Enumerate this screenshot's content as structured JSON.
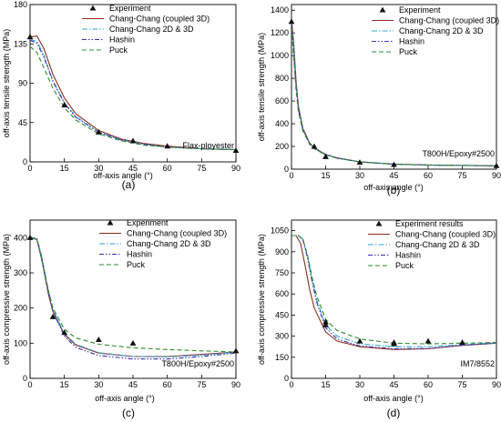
{
  "figure": {
    "series_styles": {
      "Chang-Chang (coupled 3D)": {
        "color": "#8b2c1e",
        "dash": ""
      },
      "Chang-Chang 2D & 3D": {
        "color": "#33a6cc",
        "dash": "6 2 1.5 2"
      },
      "Hashin": {
        "color": "#3b2fb3",
        "dash": "5 2 1.5 2 1.5 2"
      },
      "Puck": {
        "color": "#2e8b2e",
        "dash": "5 3"
      }
    },
    "marker_color": "#111111"
  },
  "chart_data": [
    {
      "type": "line",
      "panel_label": "(a)",
      "ylabel": "off-axis tensile strength (MPa)",
      "xlabel": "off-axis angle (°)",
      "annotation": "Flax-ployester",
      "xlim": [
        0,
        90
      ],
      "ylim": [
        0,
        180
      ],
      "xticks": [
        0,
        15,
        30,
        45,
        60,
        75,
        90
      ],
      "yticks": [
        0,
        45,
        90,
        135,
        180
      ],
      "legend": [
        "Experiment",
        "Chang-Chang (coupled 3D)",
        "Chang-Chang 2D & 3D",
        "Hashin",
        "Puck"
      ],
      "experiment": {
        "name": "Experiment",
        "x": [
          0,
          15,
          30,
          45,
          60,
          90
        ],
        "y": [
          143,
          65,
          34,
          24,
          18,
          13
        ]
      },
      "series": [
        {
          "name": "Chang-Chang (coupled 3D)",
          "x": [
            0,
            3,
            6,
            10,
            15,
            20,
            30,
            40,
            50,
            60,
            75,
            90
          ],
          "y": [
            143,
            144,
            130,
            100,
            73,
            55,
            36,
            26,
            21,
            18,
            15,
            14
          ]
        },
        {
          "name": "Chang-Chang 2D & 3D",
          "x": [
            0,
            3,
            6,
            10,
            15,
            20,
            30,
            40,
            50,
            60,
            75,
            90
          ],
          "y": [
            140,
            138,
            122,
            93,
            68,
            52,
            34,
            25,
            20,
            17,
            15,
            14
          ]
        },
        {
          "name": "Hashin",
          "x": [
            0,
            3,
            6,
            10,
            15,
            20,
            30,
            40,
            50,
            60,
            75,
            90
          ],
          "y": [
            139,
            136,
            120,
            92,
            67,
            51,
            34,
            25,
            20,
            17,
            15,
            14
          ]
        },
        {
          "name": "Puck",
          "x": [
            0,
            3,
            6,
            10,
            15,
            20,
            30,
            40,
            50,
            60,
            75,
            90
          ],
          "y": [
            132,
            125,
            108,
            84,
            62,
            48,
            32,
            24,
            19,
            17,
            15,
            14
          ]
        }
      ]
    },
    {
      "type": "line",
      "panel_label": "(b)",
      "ylabel": "off-axis tensile strength (MPa)",
      "xlabel": "off-axis angle (°)",
      "annotation": "T800H/Epoxy#2500",
      "xlim": [
        0,
        90
      ],
      "ylim": [
        0,
        1450
      ],
      "xticks": [
        0,
        15,
        30,
        45,
        60,
        75,
        90
      ],
      "yticks": [
        0,
        200,
        400,
        600,
        800,
        1000,
        1200,
        1400
      ],
      "legend": [
        "Experiment",
        "Chang-Chang (coupled 3D)",
        "Chang-Chang 2D & 3D",
        "Hashin",
        "Puck"
      ],
      "experiment": {
        "name": "Experiment",
        "x": [
          0,
          10,
          15,
          30,
          45,
          90
        ],
        "y": [
          1300,
          200,
          110,
          60,
          40,
          30
        ]
      },
      "series": [
        {
          "name": "Chang-Chang (coupled 3D)",
          "x": [
            0,
            1,
            2,
            3,
            5,
            8,
            10,
            15,
            20,
            30,
            45,
            60,
            90
          ],
          "y": [
            1330,
            1100,
            780,
            560,
            360,
            230,
            190,
            130,
            100,
            65,
            45,
            37,
            30
          ]
        },
        {
          "name": "Chang-Chang 2D & 3D",
          "x": [
            0,
            1,
            2,
            3,
            5,
            8,
            10,
            15,
            20,
            30,
            45,
            60,
            90
          ],
          "y": [
            1300,
            1050,
            740,
            540,
            350,
            225,
            185,
            128,
            98,
            64,
            44,
            36,
            30
          ]
        },
        {
          "name": "Hashin",
          "x": [
            0,
            1,
            2,
            3,
            5,
            8,
            10,
            15,
            20,
            30,
            45,
            60,
            90
          ],
          "y": [
            1290,
            1030,
            730,
            530,
            345,
            222,
            182,
            126,
            97,
            63,
            44,
            36,
            30
          ]
        },
        {
          "name": "Puck",
          "x": [
            0,
            1,
            2,
            3,
            5,
            8,
            10,
            15,
            20,
            30,
            45,
            60,
            90
          ],
          "y": [
            1250,
            980,
            700,
            510,
            335,
            218,
            180,
            125,
            96,
            63,
            44,
            36,
            30
          ]
        }
      ]
    },
    {
      "type": "line",
      "panel_label": "(c)",
      "ylabel": "off-axis compressive strength (MPa)",
      "xlabel": "off-axis angle (°)",
      "annotation": "T800H/Epoxy#2500",
      "xlim": [
        0,
        90
      ],
      "ylim": [
        0,
        450
      ],
      "xticks": [
        0,
        15,
        30,
        45,
        60,
        75,
        90
      ],
      "yticks": [
        0,
        100,
        200,
        300,
        400
      ],
      "legend": [
        "Experiment",
        "Chang-Chang (coupled 3D)",
        "Chang-Chang 2D & 3D",
        "Hashin",
        "Puck"
      ],
      "experiment": {
        "name": "Experiment",
        "x": [
          0,
          10,
          15,
          30,
          45,
          90
        ],
        "y": [
          400,
          175,
          130,
          110,
          100,
          78
        ]
      },
      "series": [
        {
          "name": "Chang-Chang (coupled 3D)",
          "x": [
            0,
            3,
            5,
            8,
            10,
            15,
            20,
            30,
            45,
            60,
            75,
            90
          ],
          "y": [
            400,
            395,
            340,
            240,
            190,
            125,
            95,
            72,
            62,
            62,
            68,
            75
          ]
        },
        {
          "name": "Chang-Chang 2D & 3D",
          "x": [
            0,
            3,
            5,
            8,
            10,
            15,
            20,
            30,
            45,
            60,
            75,
            90
          ],
          "y": [
            400,
            398,
            350,
            250,
            195,
            128,
            97,
            73,
            62,
            61,
            66,
            74
          ]
        },
        {
          "name": "Hashin",
          "x": [
            0,
            3,
            5,
            8,
            10,
            15,
            20,
            30,
            45,
            60,
            75,
            90
          ],
          "y": [
            400,
            397,
            345,
            245,
            190,
            120,
            88,
            65,
            55,
            55,
            62,
            72
          ]
        },
        {
          "name": "Puck",
          "x": [
            0,
            3,
            5,
            8,
            10,
            15,
            20,
            30,
            45,
            60,
            75,
            90
          ],
          "y": [
            400,
            395,
            340,
            250,
            200,
            140,
            115,
            97,
            87,
            82,
            78,
            75
          ]
        }
      ]
    },
    {
      "type": "line",
      "panel_label": "(d)",
      "ylabel": "off-axis compressive strength (MPa)",
      "xlabel": "off-axis angle (°)",
      "annotation": "IM7/8552",
      "xlim": [
        0,
        90
      ],
      "ylim": [
        0,
        1125
      ],
      "xticks": [
        0,
        15,
        30,
        45,
        60,
        75,
        90
      ],
      "yticks": [
        0,
        150,
        300,
        450,
        600,
        750,
        900,
        1050
      ],
      "legend": [
        "Experiment results",
        "Chang-Chang (coupled 3D)",
        "Chang-Chang 2D & 3D",
        "Hashin",
        "Puck"
      ],
      "experiment": {
        "name": "Experiment results",
        "x": [
          15,
          15,
          30,
          45,
          45,
          60,
          75
        ],
        "y": [
          400,
          380,
          265,
          255,
          245,
          265,
          255
        ]
      },
      "series": [
        {
          "name": "Chang-Chang (coupled 3D)",
          "x": [
            0,
            2,
            4,
            6,
            8,
            10,
            15,
            20,
            30,
            45,
            60,
            75,
            90
          ],
          "y": [
            1015,
            1015,
            960,
            800,
            630,
            500,
            330,
            265,
            225,
            205,
            210,
            235,
            250
          ]
        },
        {
          "name": "Chang-Chang 2D & 3D",
          "x": [
            0,
            3,
            5,
            7,
            9,
            11,
            15,
            20,
            30,
            45,
            60,
            75,
            90
          ],
          "y": [
            1015,
            1015,
            990,
            870,
            700,
            560,
            380,
            300,
            245,
            225,
            225,
            240,
            252
          ]
        },
        {
          "name": "Hashin",
          "x": [
            0,
            3,
            5,
            7,
            9,
            11,
            15,
            20,
            30,
            45,
            60,
            75,
            90
          ],
          "y": [
            1015,
            1015,
            985,
            860,
            690,
            545,
            360,
            280,
            230,
            210,
            212,
            235,
            250
          ]
        },
        {
          "name": "Puck",
          "x": [
            0,
            3,
            5,
            7,
            9,
            11,
            15,
            20,
            30,
            45,
            60,
            75,
            90
          ],
          "y": [
            1015,
            1015,
            990,
            880,
            720,
            590,
            420,
            340,
            280,
            250,
            245,
            250,
            255
          ]
        }
      ]
    }
  ]
}
